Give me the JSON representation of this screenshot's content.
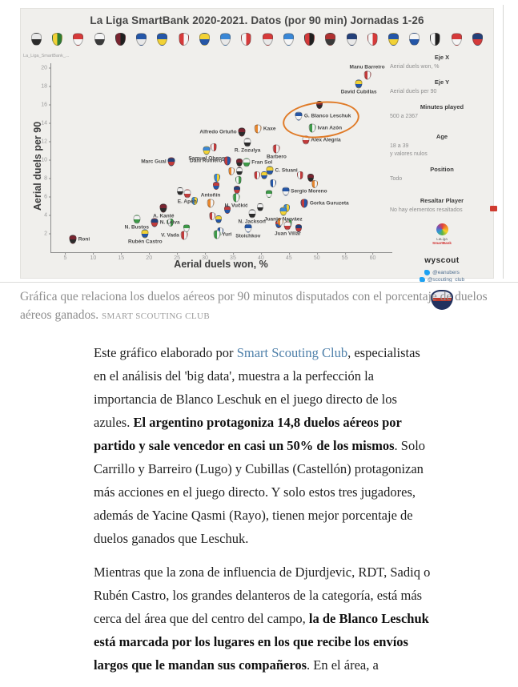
{
  "figure": {
    "title": "La Liga SmartBank 2020-2021. Datos (por 90 min) Jornadas 1-26",
    "source_tab": "La_Liga_SmartBank_...",
    "crest_row": [
      [
        "#e8e8e8",
        "#2b2b2b"
      ],
      [
        "#f2d235",
        "#2e7d32"
      ],
      [
        "#d63a3a",
        "#f5f5f5"
      ],
      [
        "#f5f5f5",
        "#3a3a3a"
      ],
      [
        "#7a2430",
        "#1f1f1f"
      ],
      [
        "#2456a8",
        "#e8e8e8"
      ],
      [
        "#2456a8",
        "#f2d235"
      ],
      [
        "#d63a3a",
        "#f5f5f5"
      ],
      [
        "#f2d235",
        "#2456a8"
      ],
      [
        "#3a87d6",
        "#e8e8e8"
      ],
      [
        "#f5f5f5",
        "#d63a3a"
      ],
      [
        "#d63a3a",
        "#e8e8e8"
      ],
      [
        "#3a87d6",
        "#f5f5f5"
      ],
      [
        "#d63a3a",
        "#1f1f1f"
      ],
      [
        "#b03030",
        "#3a3a3a"
      ],
      [
        "#24407a",
        "#e8e8e8"
      ],
      [
        "#f5f5f5",
        "#d63a3a"
      ],
      [
        "#2456a8",
        "#f2d235"
      ],
      [
        "#f5f5f5",
        "#2456a8"
      ],
      [
        "#f5f5f5",
        "#1f1f1f"
      ],
      [
        "#d63a3a",
        "#f5f5f5"
      ],
      [
        "#24407a",
        "#d63a3a"
      ]
    ],
    "sidebar": {
      "eje_x_label": "Eje X",
      "eje_x_value": "Aerial duels won, %",
      "eje_y_label": "Eje Y",
      "eje_y_value": "Aerial duels per 90",
      "minutes_label": "Minutes played",
      "minutes_value": "500 a 2367",
      "age_label": "Age",
      "age_value": "18 a 39",
      "age_value2": "y valores nulos",
      "position_label": "Position",
      "position_value": "Todo",
      "resaltar_label": "Resaltar Player",
      "resaltar_value": "No hay elementos resaltados"
    },
    "logos": {
      "laliga_line1": "LaLiga",
      "laliga_line2": "SmartBank",
      "wyscout": "wyscout",
      "twitter_handles": [
        "@eanubers",
        "@scouting_club"
      ]
    }
  },
  "chart_data": {
    "type": "scatter",
    "title": "La Liga SmartBank 2020-2021. Datos (por 90 min) Jornadas 1-26",
    "xlabel": "Aerial duels won, %",
    "ylabel": "Aerial duels per 90",
    "xlim": [
      2.5,
      63.5
    ],
    "ylim": [
      0,
      20.5
    ],
    "x_ticks": [
      5,
      10,
      15,
      20,
      25,
      30,
      35,
      40,
      45,
      50,
      55,
      60
    ],
    "y_ticks": [
      2,
      4,
      6,
      8,
      10,
      12,
      14,
      16,
      18,
      20
    ],
    "grid": false,
    "marker": "club-crest",
    "points": [
      {
        "name": "Manu Barreiro",
        "x": 59,
        "y": 19.2,
        "pos": "above"
      },
      {
        "name": "David Cubillas",
        "x": 57.5,
        "y": 18.2,
        "pos": "below"
      },
      {
        "name": "G. Blanco Leschuk",
        "x": 46.8,
        "y": 14.8,
        "pos": "right"
      },
      {
        "name": "Ivan Azón",
        "x": 49.2,
        "y": 13.5,
        "pos": "right"
      },
      {
        "name": "Álex Alegría",
        "x": 48,
        "y": 12.2,
        "pos": "right"
      },
      {
        "name": "Alfredo Ortuño",
        "x": 36.6,
        "y": 13,
        "pos": "left"
      },
      {
        "name": "Kaxe",
        "x": 39.5,
        "y": 13.4,
        "pos": "right"
      },
      {
        "name": "R. Zozulya",
        "x": 37.6,
        "y": 11.9,
        "pos": "below"
      },
      {
        "name": "Samuel Obeng",
        "x": 30.3,
        "y": 11,
        "pos": "below"
      },
      {
        "name": "Dani Romero",
        "x": 34,
        "y": 9.9,
        "pos": "left"
      },
      {
        "name": "Fran Sol",
        "x": 37.4,
        "y": 9.7,
        "pos": "right"
      },
      {
        "name": "Marc Gual",
        "x": 24,
        "y": 9.8,
        "pos": "left"
      },
      {
        "name": "Barbero",
        "x": 42.8,
        "y": 11.2,
        "pos": "below"
      },
      {
        "name": "C. Stuani",
        "x": 41.6,
        "y": 8.9,
        "pos": "right"
      },
      {
        "name": "Sergio Moreno",
        "x": 44.4,
        "y": 6.6,
        "pos": "right"
      },
      {
        "name": "H. Vučkić",
        "x": 35.6,
        "y": 5.9,
        "pos": "below"
      },
      {
        "name": "E. Apeh",
        "x": 26.8,
        "y": 6.3,
        "pos": "below"
      },
      {
        "name": "A. Kanté",
        "x": 22.6,
        "y": 4.8,
        "pos": "below"
      },
      {
        "name": "Antoñín",
        "x": 31,
        "y": 5.3,
        "pos": "above"
      },
      {
        "name": "N. Jackson",
        "x": 38.4,
        "y": 4.2,
        "pos": "below"
      },
      {
        "name": "Juanjo Narváez",
        "x": 44,
        "y": 4.4,
        "pos": "below"
      },
      {
        "name": "Gorka Guruzeta",
        "x": 47.8,
        "y": 5.3,
        "pos": "right"
      },
      {
        "name": "N. Bustos",
        "x": 17.8,
        "y": 3.6,
        "pos": "below"
      },
      {
        "name": "N. Leiva",
        "x": 21,
        "y": 3.2,
        "pos": "right"
      },
      {
        "name": "V. Vada",
        "x": 26.3,
        "y": 1.8,
        "pos": "left"
      },
      {
        "name": "Rubén Castro",
        "x": 19.3,
        "y": 2,
        "pos": "below"
      },
      {
        "name": "Stoichkov",
        "x": 37.7,
        "y": 2.6,
        "pos": "below"
      },
      {
        "name": "Yuri",
        "x": 32.1,
        "y": 1.9,
        "pos": "right"
      },
      {
        "name": "Juan Villar",
        "x": 44.8,
        "y": 2.9,
        "pos": "below"
      },
      {
        "name": "Roni",
        "x": 6.4,
        "y": 1.4,
        "pos": "right"
      }
    ],
    "unlabeled_points": [
      [
        36.2,
        9.7
      ],
      [
        34.7,
        8.8
      ],
      [
        36.1,
        8.8
      ],
      [
        32.1,
        8.1
      ],
      [
        32,
        7.2
      ],
      [
        36,
        7.8
      ],
      [
        35.7,
        6.8
      ],
      [
        39.3,
        8.3
      ],
      [
        40.6,
        8.3
      ],
      [
        42.1,
        7.5
      ],
      [
        41.4,
        6.3
      ],
      [
        47,
        8.3
      ],
      [
        48.9,
        8.1
      ],
      [
        49.6,
        7.4
      ],
      [
        39.9,
        4.9
      ],
      [
        44.6,
        4.8
      ],
      [
        43.1,
        3.0
      ],
      [
        45,
        3.1
      ],
      [
        46.7,
        2.6
      ],
      [
        31.3,
        3.9
      ],
      [
        32.4,
        3.6
      ],
      [
        32.7,
        2.3
      ],
      [
        26.7,
        2.6
      ],
      [
        31.5,
        11.4
      ],
      [
        50.5,
        16
      ],
      [
        43.5,
        3.3
      ],
      [
        25.5,
        6.6
      ],
      [
        28.2,
        5.6
      ],
      [
        34,
        4.6
      ],
      [
        23.8,
        3.2
      ]
    ],
    "annotation": {
      "shape": "ellipse",
      "cx": 50.5,
      "cy": 14.5,
      "rx": 6.6,
      "ry": 1.8,
      "rotate": -6,
      "color": "#e07b28",
      "around": [
        "G. Blanco Leschuk",
        "Ivan Azón"
      ]
    },
    "crest_palette": [
      [
        "#c23b3b",
        "#f2f2f2"
      ],
      [
        "#f2d235",
        "#2456a8"
      ],
      [
        "#2456a8",
        "#f2f2f2"
      ],
      [
        "#3c9a47",
        "#f2f2f2"
      ],
      [
        "#f2f2f2",
        "#c23b3b"
      ],
      [
        "#7a2430",
        "#2b2b2b"
      ],
      [
        "#e8862c",
        "#f2f2f2"
      ],
      [
        "#f2f2f2",
        "#2b2b2b"
      ],
      [
        "#3a87d6",
        "#f2d235"
      ],
      [
        "#c23b3b",
        "#2456a8"
      ],
      [
        "#f2f2f2",
        "#3c9a47"
      ],
      [
        "#24407a",
        "#c23b3b"
      ]
    ]
  },
  "caption": {
    "text": "Gráfica que relaciona los duelos aéreos por 90 minutos disputados con el porcentaje de duelos aéreos ganados.",
    "credit": "SMART SCOUTING CLUB"
  },
  "article": {
    "link_color": "#4d7fa9",
    "paragraphs": [
      {
        "segments": [
          {
            "text": "Este gráfico elaborado por "
          },
          {
            "text": "Smart Scouting Club",
            "link": true
          },
          {
            "text": ", especialistas en el análisis del 'big data', muestra a la perfección la importancia de Blanco Leschuk en el juego directo de los azules. "
          },
          {
            "text": "El argentino protagoniza 14,8 duelos aéreos por partido y sale vencedor en casi un 50% de los mismos",
            "bold": true
          },
          {
            "text": ". Solo Carrillo y Barreiro (Lugo) y Cubillas (Castellón) protagonizan más acciones en el juego directo. Y solo estos tres jugadores, además de Yacine Qasmi (Rayo), tienen mejor porcentaje de duelos ganados que Leschuk."
          }
        ]
      },
      {
        "segments": [
          {
            "text": "Mientras que la zona de influencia de Djurdjevic, RDT, Sadiq o Rubén Castro, los grandes delanteros de la categoría, está más cerca del área que del centro del campo, "
          },
          {
            "text": "la de Blanco Leschuk está marcada por los lugares en los que recibe los envíos largos que le mandan sus compañeros",
            "bold": true
          },
          {
            "text": ". En el área, a"
          }
        ]
      }
    ]
  }
}
